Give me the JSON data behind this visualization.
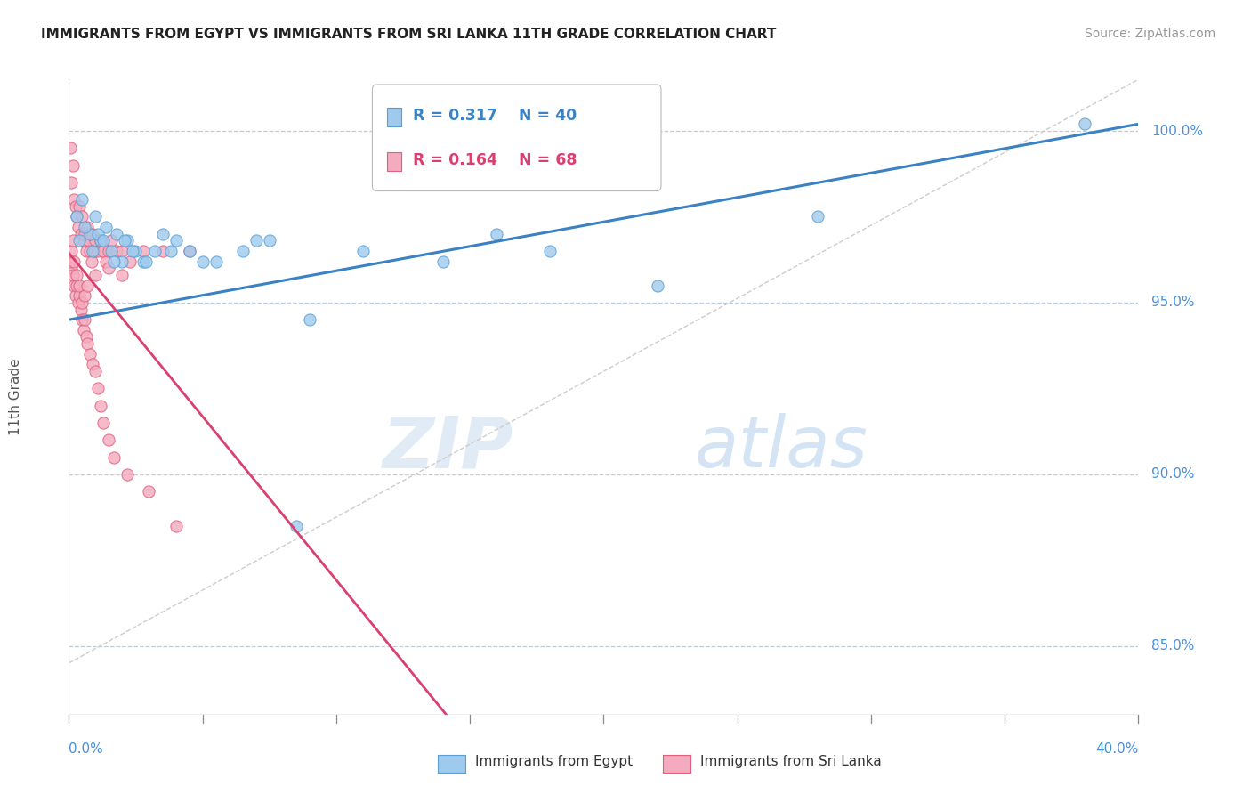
{
  "title": "IMMIGRANTS FROM EGYPT VS IMMIGRANTS FROM SRI LANKA 11TH GRADE CORRELATION CHART",
  "source_text": "Source: ZipAtlas.com",
  "ylabel": "11th Grade",
  "right_yticks": [
    85.0,
    90.0,
    95.0,
    100.0
  ],
  "xlim": [
    0.0,
    40.0
  ],
  "ylim": [
    83.0,
    101.5
  ],
  "legend_r1": "R = 0.317",
  "legend_n1": "N = 40",
  "legend_r2": "R = 0.164",
  "legend_n2": "N = 68",
  "color_egypt": "#9ECAED",
  "color_srilanka": "#F4AABF",
  "color_egypt_edge": "#5A9FD4",
  "color_srilanka_edge": "#E0607A",
  "color_egypt_line": "#3B82C4",
  "color_srilanka_line": "#D94070",
  "watermark_zip": "ZIP",
  "watermark_atlas": "atlas",
  "egypt_scatter_x": [
    0.3,
    0.5,
    0.8,
    1.0,
    1.2,
    1.4,
    1.6,
    1.8,
    2.0,
    2.2,
    2.5,
    2.8,
    3.2,
    3.5,
    4.0,
    4.5,
    5.5,
    6.5,
    7.5,
    9.0,
    11.0,
    14.0,
    18.0,
    28.0,
    38.0,
    0.4,
    0.6,
    0.9,
    1.1,
    1.3,
    1.7,
    2.1,
    2.4,
    2.9,
    3.8,
    5.0,
    7.0,
    8.5,
    16.0,
    22.0
  ],
  "egypt_scatter_y": [
    97.5,
    98.0,
    97.0,
    97.5,
    96.8,
    97.2,
    96.5,
    97.0,
    96.2,
    96.8,
    96.5,
    96.2,
    96.5,
    97.0,
    96.8,
    96.5,
    96.2,
    96.5,
    96.8,
    94.5,
    96.5,
    96.2,
    96.5,
    97.5,
    100.2,
    96.8,
    97.2,
    96.5,
    97.0,
    96.8,
    96.2,
    96.8,
    96.5,
    96.2,
    96.5,
    96.2,
    96.8,
    88.5,
    97.0,
    95.5
  ],
  "srilanka_scatter_x": [
    0.05,
    0.1,
    0.15,
    0.2,
    0.25,
    0.3,
    0.35,
    0.4,
    0.45,
    0.5,
    0.55,
    0.6,
    0.65,
    0.7,
    0.75,
    0.8,
    0.85,
    0.9,
    0.95,
    1.0,
    1.1,
    1.2,
    1.3,
    1.4,
    1.5,
    1.6,
    1.8,
    2.0,
    2.3,
    2.8,
    3.5,
    4.5,
    0.1,
    0.15,
    0.2,
    0.25,
    0.3,
    0.35,
    0.4,
    0.45,
    0.5,
    0.55,
    0.6,
    0.65,
    0.7,
    0.8,
    0.9,
    1.0,
    1.1,
    1.2,
    1.3,
    1.5,
    1.7,
    2.2,
    3.0,
    4.0,
    0.05,
    0.1,
    0.15,
    0.2,
    0.3,
    0.4,
    0.5,
    0.6,
    0.7,
    1.0,
    1.5,
    2.0
  ],
  "srilanka_scatter_y": [
    99.5,
    98.5,
    99.0,
    98.0,
    97.8,
    97.5,
    97.2,
    97.8,
    97.0,
    97.5,
    96.8,
    97.0,
    96.5,
    97.2,
    96.8,
    96.5,
    96.2,
    97.0,
    96.5,
    96.8,
    96.5,
    96.8,
    96.5,
    96.2,
    96.5,
    96.8,
    96.5,
    96.5,
    96.2,
    96.5,
    96.5,
    96.5,
    96.0,
    95.8,
    95.5,
    95.2,
    95.5,
    95.0,
    95.2,
    94.8,
    94.5,
    94.2,
    94.5,
    94.0,
    93.8,
    93.5,
    93.2,
    93.0,
    92.5,
    92.0,
    91.5,
    91.0,
    90.5,
    90.0,
    89.5,
    88.5,
    96.2,
    96.5,
    96.8,
    96.2,
    95.8,
    95.5,
    95.0,
    95.2,
    95.5,
    95.8,
    96.0,
    95.8
  ]
}
